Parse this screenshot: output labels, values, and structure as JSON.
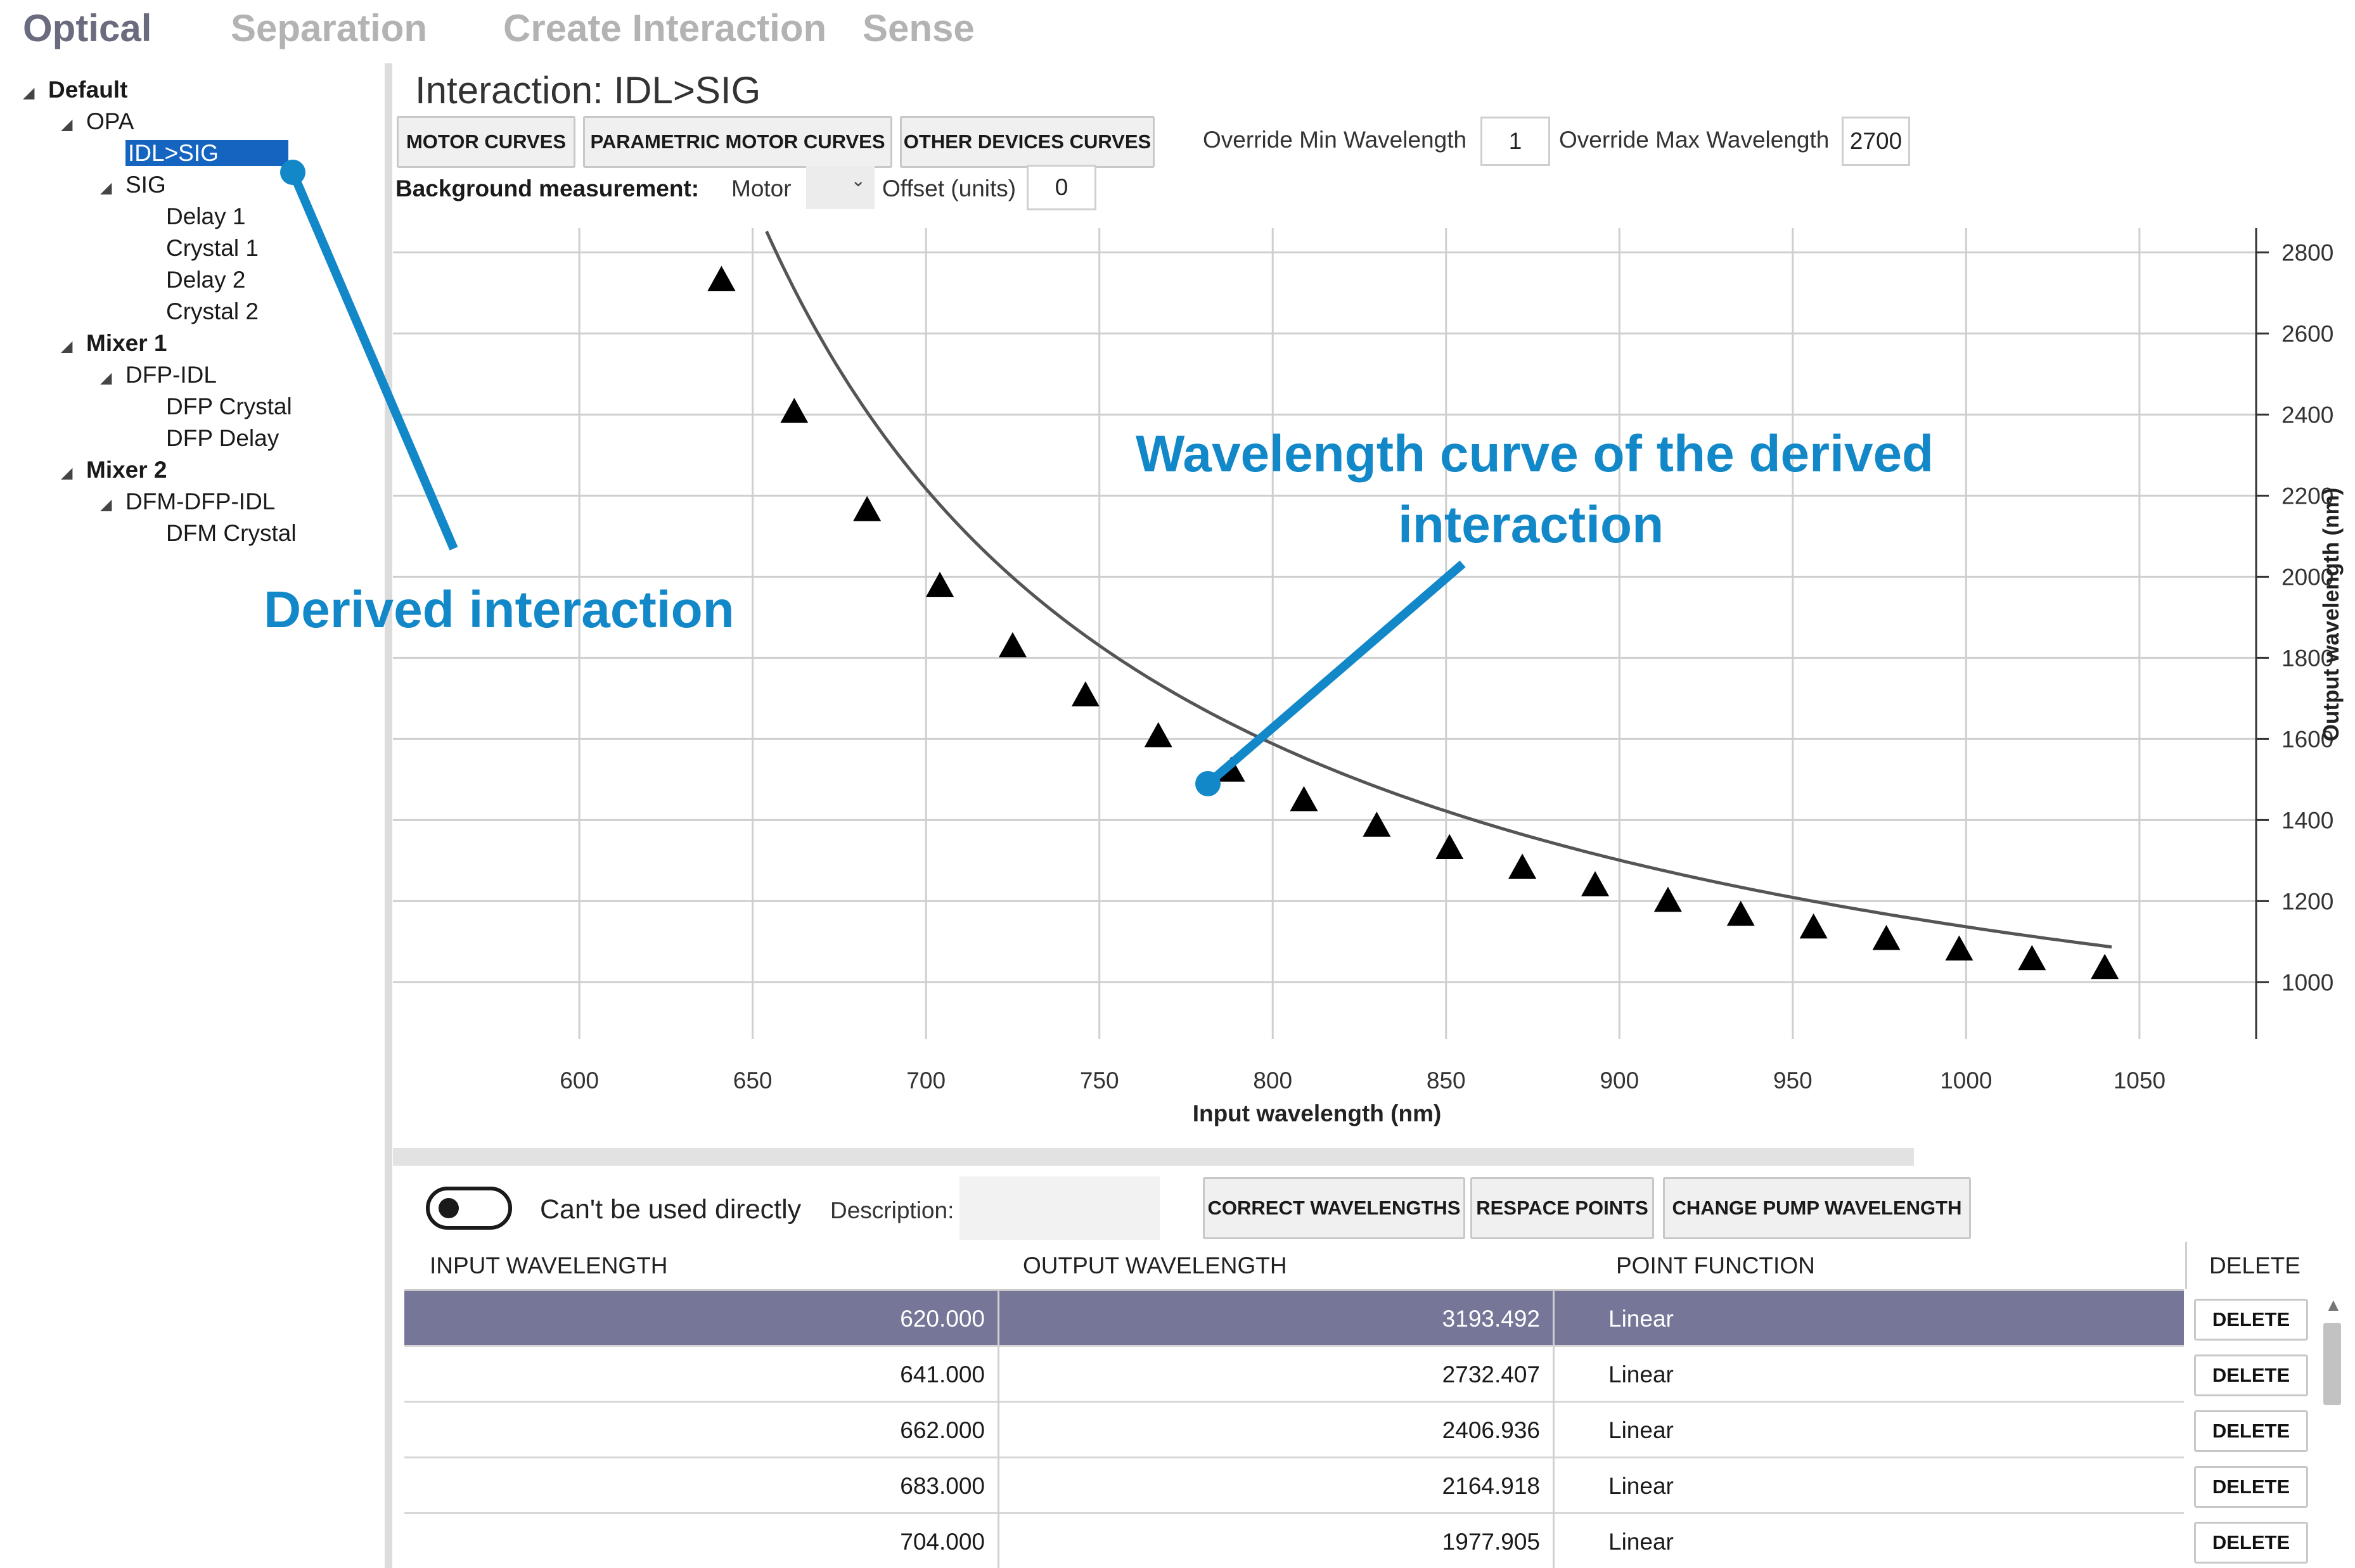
{
  "tabs": [
    {
      "label": "Optical",
      "active": true
    },
    {
      "label": "Separation",
      "active": false
    },
    {
      "label": "Create Interaction",
      "active": false
    },
    {
      "label": "Sense",
      "active": false
    }
  ],
  "tree": {
    "root": "Default",
    "opa": "OPA",
    "idl_sig": "IDL>SIG",
    "sig": "SIG",
    "delay1": "Delay 1",
    "crystal1": "Crystal 1",
    "delay2": "Delay 2",
    "crystal2": "Crystal 2",
    "mixer1": "Mixer 1",
    "dfp_idl": "DFP-IDL",
    "dfp_crystal": "DFP Crystal",
    "dfp_delay": "DFP Delay",
    "mixer2": "Mixer 2",
    "dfm_dfp_idl": "DFM-DFP-IDL",
    "dfm_crystal": "DFM Crystal",
    "caret": "◢"
  },
  "panel": {
    "title": "Interaction: IDL>SIG",
    "motor_curves": "MOTOR CURVES",
    "parametric_motor_curves": "PARAMETRIC MOTOR CURVES",
    "other_devices_curves": "OTHER DEVICES CURVES",
    "override_min_label": "Override Min Wavelength",
    "override_min_value": "1",
    "override_max_label": "Override Max Wavelength",
    "override_max_value": "2700",
    "background_label": "Background measurement:",
    "motor_label": "Motor",
    "offset_label": "Offset (units)",
    "offset_value": "0"
  },
  "chart_data": {
    "type": "scatter",
    "xlabel": "Input wavelength (nm)",
    "ylabel": "Output wavelength (nm)",
    "xlim": [
      570,
      1080
    ],
    "ylim": [
      860,
      2860
    ],
    "xticks": [
      600,
      650,
      700,
      750,
      800,
      850,
      900,
      950,
      1000,
      1050
    ],
    "yticks": [
      1000,
      1200,
      1400,
      1600,
      1800,
      2000,
      2200,
      2400,
      2600,
      2800
    ],
    "grid": true,
    "curve_x_start": 612,
    "curve_x_end": 1042,
    "points": {
      "x": [
        641,
        662,
        683,
        704,
        725,
        746,
        767,
        788,
        809,
        830,
        851,
        872,
        893,
        914,
        935,
        956,
        977,
        998,
        1019,
        1040
      ],
      "y": [
        2732.407,
        2406.936,
        2164.918,
        1977.905,
        1829.1,
        1707.8,
        1607.2,
        1522.2,
        1449.4,
        1386.4,
        1331.3,
        1282.8,
        1239.7,
        1201.2,
        1166.6,
        1135.4,
        1107.0,
        1081.1,
        1057.4,
        1035.6
      ]
    }
  },
  "bottom": {
    "toggle_label": "Can't be used directly",
    "description_label": "Description:",
    "correct_wavelengths": "CORRECT WAVELENGTHS",
    "respace_points": "RESPACE POINTS",
    "change_pump_wavelength": "CHANGE PUMP WAVELENGTH"
  },
  "table": {
    "headers": [
      "INPUT WAVELENGTH",
      "OUTPUT WAVELENGTH",
      "POINT FUNCTION",
      "DELETE"
    ],
    "delete_label": "DELETE",
    "rows": [
      {
        "input": "620.000",
        "output": "3193.492",
        "func": "Linear"
      },
      {
        "input": "641.000",
        "output": "2732.407",
        "func": "Linear"
      },
      {
        "input": "662.000",
        "output": "2406.936",
        "func": "Linear"
      },
      {
        "input": "683.000",
        "output": "2164.918",
        "func": "Linear"
      },
      {
        "input": "704.000",
        "output": "1977.905",
        "func": "Linear"
      }
    ]
  },
  "annotations": {
    "derived": "Derived interaction",
    "curve_line1": "Wavelength curve of the derived",
    "curve_line2": "interaction"
  },
  "colors": {
    "accent": "#1288c8",
    "selection": "#1565c0",
    "row_selected": "#767699"
  }
}
